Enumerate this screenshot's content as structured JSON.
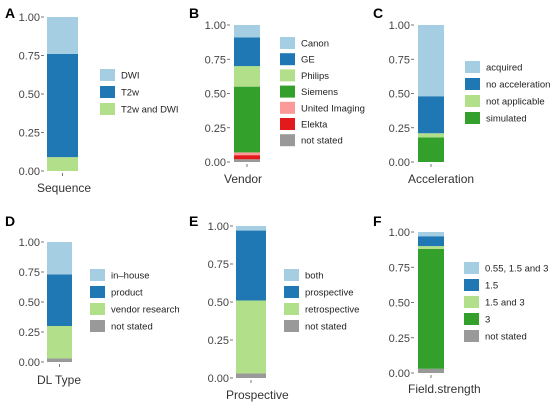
{
  "colors": {
    "light_blue": "#a6cee3",
    "blue": "#1f78b4",
    "light_green": "#b2df8a",
    "green": "#33a02c",
    "pink": "#fb9a99",
    "red": "#e31a1c",
    "grey": "#999999"
  },
  "chart_data": [
    {
      "type": "bar",
      "panel": "A",
      "xlabel": "Sequence",
      "ylim": [
        0,
        1
      ],
      "yticks": [
        "0.00",
        "0.25",
        "0.50",
        "0.75",
        "1.00"
      ],
      "stack_order": "bottom-to-top",
      "legend_position": "right",
      "series": [
        {
          "name": "T2w and DWI",
          "value": 0.09,
          "color": "#b2df8a"
        },
        {
          "name": "T2w",
          "value": 0.67,
          "color": "#1f78b4"
        },
        {
          "name": "DWI",
          "value": 0.24,
          "color": "#a6cee3"
        }
      ],
      "legend": [
        "DWI",
        "T2w",
        "T2w and DWI"
      ]
    },
    {
      "type": "bar",
      "panel": "B",
      "xlabel": "Vendor",
      "ylim": [
        0,
        1
      ],
      "yticks": [
        "0.00",
        "0.25",
        "0.50",
        "0.75",
        "1.00"
      ],
      "stack_order": "bottom-to-top",
      "legend_position": "right",
      "series": [
        {
          "name": "not stated",
          "value": 0.02,
          "color": "#999999"
        },
        {
          "name": "Elekta",
          "value": 0.03,
          "color": "#e31a1c"
        },
        {
          "name": "United Imaging",
          "value": 0.02,
          "color": "#fb9a99"
        },
        {
          "name": "Siemens",
          "value": 0.48,
          "color": "#33a02c"
        },
        {
          "name": "Philips",
          "value": 0.15,
          "color": "#b2df8a"
        },
        {
          "name": "GE",
          "value": 0.21,
          "color": "#1f78b4"
        },
        {
          "name": "Canon",
          "value": 0.09,
          "color": "#a6cee3"
        }
      ],
      "legend": [
        "Canon",
        "GE",
        "Philips",
        "Siemens",
        "United Imaging",
        "Elekta",
        "not stated"
      ]
    },
    {
      "type": "bar",
      "panel": "C",
      "xlabel": "Acceleration",
      "ylim": [
        0,
        1
      ],
      "yticks": [
        "0.00",
        "0.25",
        "0.50",
        "0.75",
        "1.00"
      ],
      "stack_order": "bottom-to-top",
      "legend_position": "right",
      "series": [
        {
          "name": "simulated",
          "value": 0.18,
          "color": "#33a02c"
        },
        {
          "name": "not applicable",
          "value": 0.03,
          "color": "#b2df8a"
        },
        {
          "name": "no acceleration",
          "value": 0.27,
          "color": "#1f78b4"
        },
        {
          "name": "acquired",
          "value": 0.52,
          "color": "#a6cee3"
        }
      ],
      "legend": [
        "acquired",
        "no acceleration",
        "not applicable",
        "simulated"
      ]
    },
    {
      "type": "bar",
      "panel": "D",
      "xlabel": "DL Type",
      "ylim": [
        0,
        1
      ],
      "yticks": [
        "0.00",
        "0.25",
        "0.50",
        "0.75",
        "1.00"
      ],
      "stack_order": "bottom-to-top",
      "legend_position": "right",
      "series": [
        {
          "name": "not stated",
          "value": 0.03,
          "color": "#999999"
        },
        {
          "name": "vendor research",
          "value": 0.27,
          "color": "#b2df8a"
        },
        {
          "name": "product",
          "value": 0.43,
          "color": "#1f78b4"
        },
        {
          "name": "in–house",
          "value": 0.27,
          "color": "#a6cee3"
        }
      ],
      "legend": [
        "in–house",
        "product",
        "vendor research",
        "not stated"
      ]
    },
    {
      "type": "bar",
      "panel": "E",
      "xlabel": "Prospective",
      "ylim": [
        0,
        1
      ],
      "yticks": [
        "0.00",
        "0.25",
        "0.50",
        "0.75",
        "1.00"
      ],
      "stack_order": "bottom-to-top",
      "legend_position": "right",
      "series": [
        {
          "name": "not stated",
          "value": 0.03,
          "color": "#999999"
        },
        {
          "name": "retrospective",
          "value": 0.48,
          "color": "#b2df8a"
        },
        {
          "name": "prospective",
          "value": 0.46,
          "color": "#1f78b4"
        },
        {
          "name": "both",
          "value": 0.03,
          "color": "#a6cee3"
        }
      ],
      "legend": [
        "both",
        "prospective",
        "retrospective",
        "not stated"
      ]
    },
    {
      "type": "bar",
      "panel": "F",
      "xlabel": "Field.strength",
      "ylim": [
        0,
        1
      ],
      "yticks": [
        "0.00",
        "0.25",
        "0.50",
        "0.75",
        "1.00"
      ],
      "stack_order": "bottom-to-top",
      "legend_position": "right",
      "series": [
        {
          "name": "not stated",
          "value": 0.03,
          "color": "#999999"
        },
        {
          "name": "3",
          "value": 0.85,
          "color": "#33a02c"
        },
        {
          "name": "1.5 and 3",
          "value": 0.02,
          "color": "#b2df8a"
        },
        {
          "name": "1.5",
          "value": 0.07,
          "color": "#1f78b4"
        },
        {
          "name": "0.55, 1.5 and 3",
          "value": 0.03,
          "color": "#a6cee3"
        }
      ],
      "legend": [
        "0.55, 1.5 and 3",
        "1.5",
        "1.5 and 3",
        "3",
        "not stated"
      ]
    }
  ]
}
